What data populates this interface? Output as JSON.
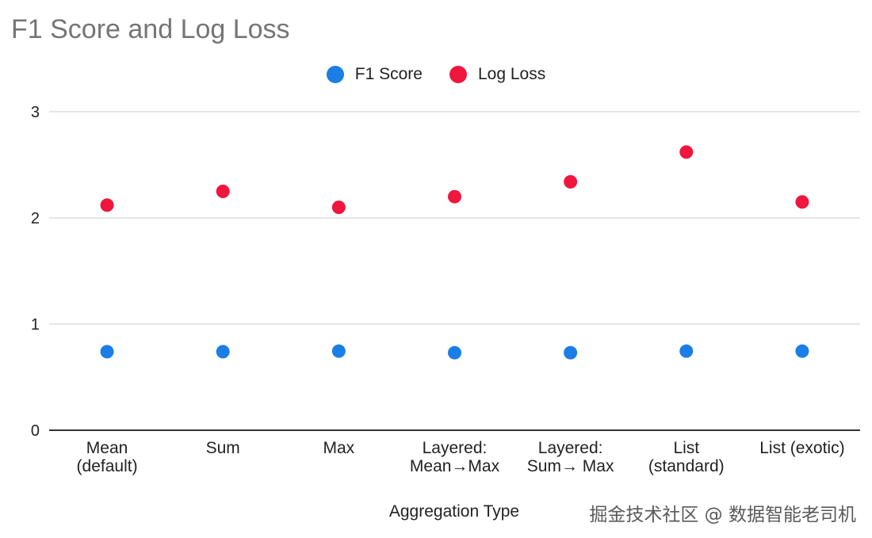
{
  "title": "F1 Score and Log Loss",
  "watermark": "掘金技术社区 @ 数据智能老司机",
  "chart_data": {
    "type": "scatter",
    "title": "F1 Score and Log Loss",
    "xlabel": "Aggregation Type",
    "ylabel": "",
    "categories": [
      [
        "Mean",
        "(default)"
      ],
      [
        "Sum"
      ],
      [
        "Max"
      ],
      [
        "Layered:",
        "Mean→Max"
      ],
      [
        "Layered:",
        "Sum→ Max"
      ],
      [
        "List",
        "(standard)"
      ],
      [
        "List (exotic)"
      ]
    ],
    "ylim": [
      0,
      3
    ],
    "yticks": [
      "0",
      "1",
      "2",
      "3"
    ],
    "grid": true,
    "legend_position": "top",
    "series": [
      {
        "name": "F1 Score",
        "color": "#1a7ee6",
        "values": [
          0.74,
          0.74,
          0.745,
          0.73,
          0.73,
          0.745,
          0.745
        ]
      },
      {
        "name": "Log Loss",
        "color": "#f0163d",
        "values": [
          2.12,
          2.25,
          2.1,
          2.2,
          2.34,
          2.62,
          2.15
        ]
      }
    ]
  }
}
